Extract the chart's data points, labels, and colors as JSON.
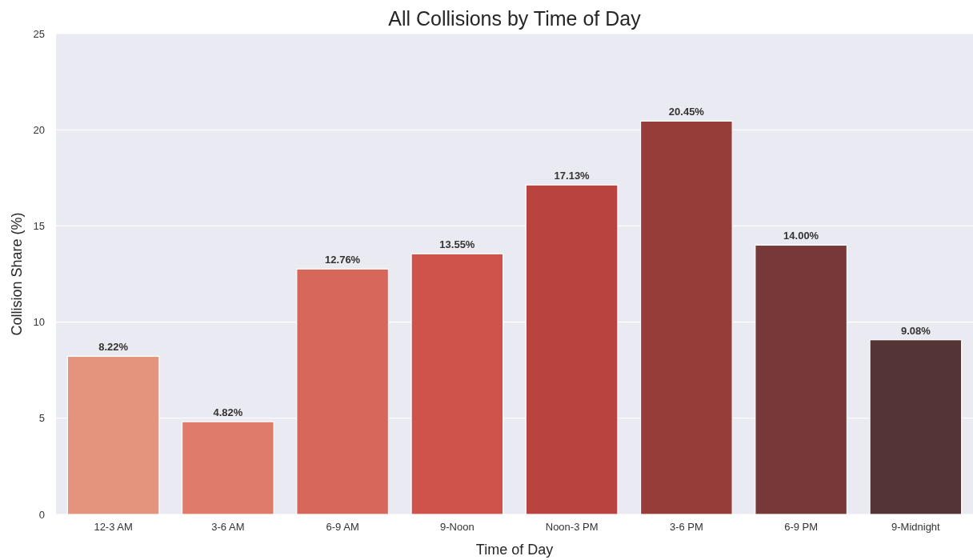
{
  "chart_data": {
    "type": "bar",
    "title": "All Collisions by Time of Day",
    "xlabel": "Time of Day",
    "ylabel": "Collision Share (%)",
    "categories": [
      "12-3 AM",
      "3-6 AM",
      "6-9 AM",
      "9-Noon",
      "Noon-3 PM",
      "3-6 PM",
      "6-9 PM",
      "9-Midnight"
    ],
    "values": [
      8.22,
      4.82,
      12.76,
      13.55,
      17.13,
      20.45,
      14.0,
      9.08
    ],
    "colors": [
      "#e4937c",
      "#df7b6b",
      "#d6675a",
      "#cf524b",
      "#b9443f",
      "#963d39",
      "#763838",
      "#553436"
    ],
    "value_labels": [
      "8.22%",
      "4.82%",
      "12.76%",
      "13.55%",
      "17.13%",
      "20.45%",
      "14.00%",
      "9.08%"
    ],
    "ylim": [
      0,
      25
    ],
    "yticks": [
      0,
      5,
      10,
      15,
      20,
      25
    ],
    "grid": "y"
  }
}
